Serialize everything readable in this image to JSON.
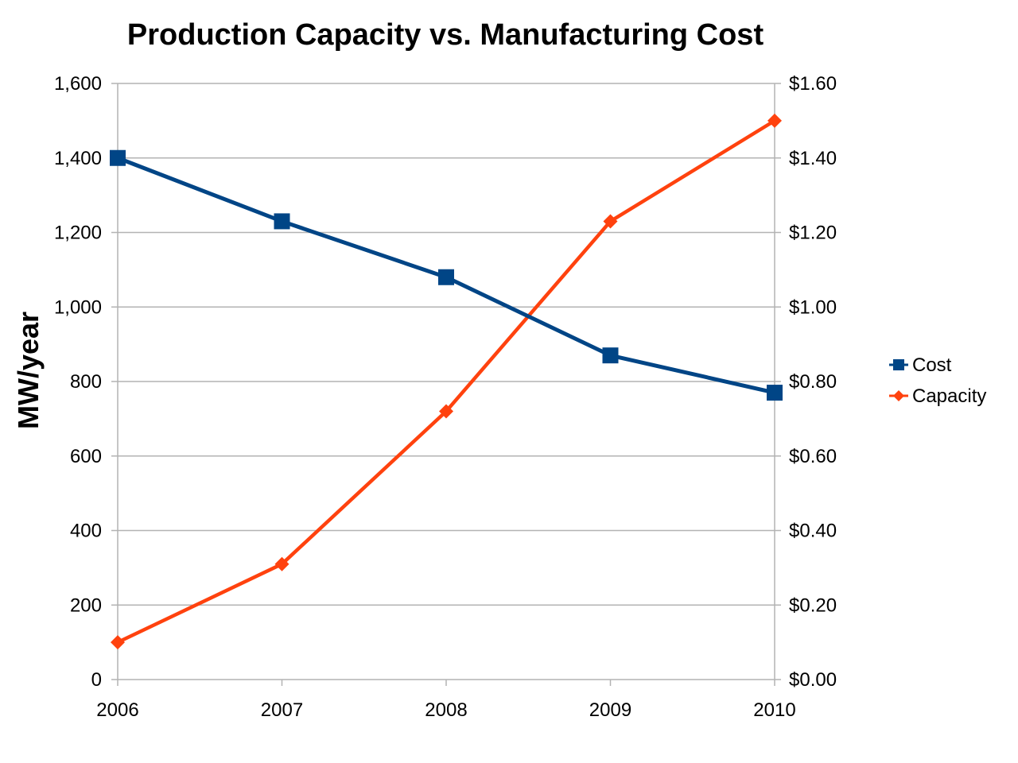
{
  "chart_data": {
    "type": "line",
    "title": "Production Capacity vs. Manufacturing Cost",
    "ylabel": "MW/year",
    "y2label": "",
    "xlabel": "",
    "categories": [
      "2006",
      "2007",
      "2008",
      "2009",
      "2010"
    ],
    "y_ticks": [
      "0",
      "200",
      "400",
      "600",
      "800",
      "1,000",
      "1,200",
      "1,400",
      "1,600"
    ],
    "y2_ticks": [
      "$0.00",
      "$0.20",
      "$0.40",
      "$0.60",
      "$0.80",
      "$1.00",
      "$1.20",
      "$1.40",
      "$1.60"
    ],
    "ylim": [
      0,
      1600
    ],
    "y2lim": [
      0,
      1.6
    ],
    "grid": true,
    "legend_position": "right",
    "series": [
      {
        "name": "Cost",
        "axis": "right",
        "values": [
          1.4,
          1.23,
          1.08,
          0.87,
          0.77
        ],
        "color": "#004586",
        "marker": "square"
      },
      {
        "name": "Capacity",
        "axis": "left",
        "values": [
          100,
          310,
          720,
          1230,
          1500
        ],
        "color": "#ff420e",
        "marker": "diamond"
      }
    ]
  }
}
